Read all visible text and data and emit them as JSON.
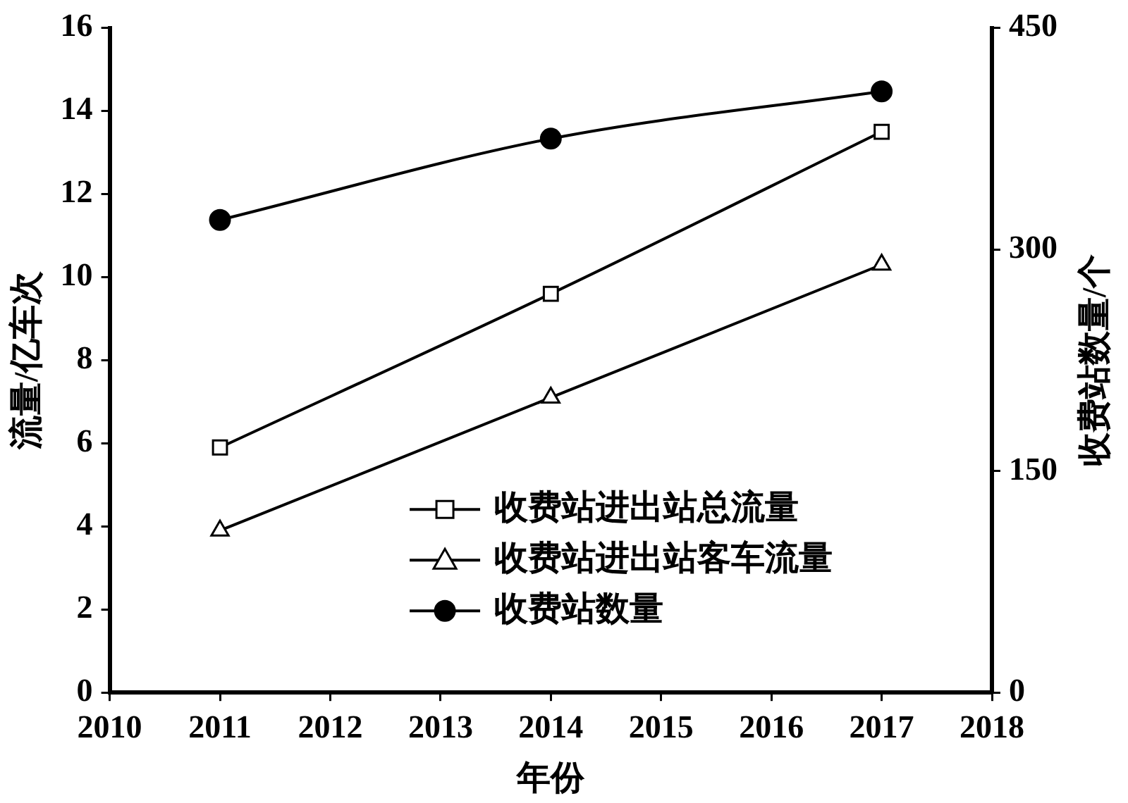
{
  "chart_data": {
    "type": "line",
    "xlabel": "年份",
    "ylabel": "流量/亿车次",
    "y2label": "收费站数量/个",
    "x": [
      2011,
      2014,
      2017
    ],
    "series": [
      {
        "name": "收费站进出站总流量",
        "color": "#000000",
        "marker": "square",
        "values": [
          5.9,
          9.6,
          13.5
        ]
      },
      {
        "name": "收费站进出站客车流量",
        "color": "#000000",
        "marker": "triangle",
        "values": [
          3.9,
          7.1,
          10.3
        ]
      },
      {
        "name": "收费站数量",
        "color": "#000000",
        "marker": "circle",
        "axis": "y2",
        "values": [
          320,
          375,
          407
        ]
      }
    ],
    "xlim": [
      2010,
      2018
    ],
    "xticks": [
      2010,
      2011,
      2012,
      2013,
      2014,
      2015,
      2016,
      2017,
      2018
    ],
    "ylim": [
      0,
      16
    ],
    "yticks": [
      0,
      2,
      4,
      6,
      8,
      10,
      12,
      14,
      16
    ],
    "y2lim": [
      0,
      450
    ],
    "y2ticks": [
      0,
      150,
      300,
      450
    ],
    "grid": false,
    "legend": "bottom"
  }
}
